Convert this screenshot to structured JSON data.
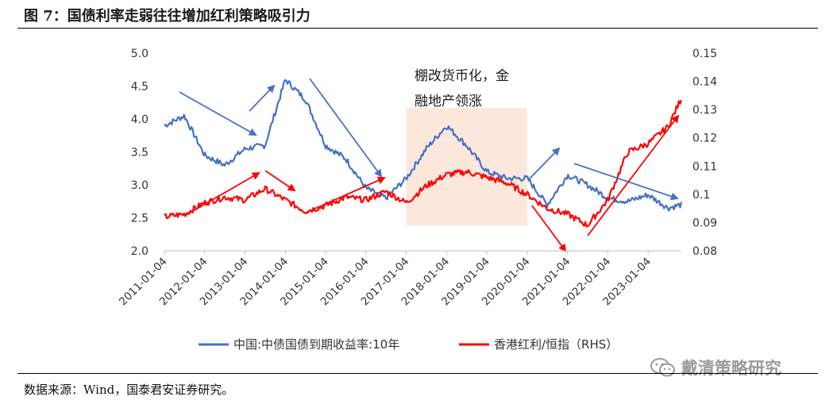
{
  "figure": {
    "title": "图 7：国债利率走弱往往增加红利策略吸引力",
    "source": "数据来源：Wind，国泰君安证券研究。",
    "watermark": "戴清策略研究"
  },
  "chart_data": {
    "type": "line",
    "x": [
      "2011-01-04",
      "2011-07-04",
      "2012-01-04",
      "2012-07-04",
      "2013-01-04",
      "2013-07-04",
      "2014-01-04",
      "2014-07-04",
      "2015-01-04",
      "2015-07-04",
      "2016-01-04",
      "2016-07-04",
      "2017-01-04",
      "2017-07-04",
      "2018-01-04",
      "2018-07-04",
      "2019-01-04",
      "2019-07-04",
      "2020-01-04",
      "2020-07-04",
      "2021-01-04",
      "2021-07-04",
      "2022-01-04",
      "2022-07-04",
      "2023-01-04",
      "2023-07-04",
      "2023-11-01"
    ],
    "series": [
      {
        "name": "中国:中债国债到期收益率:10年",
        "axis": "left",
        "color": "#4472C4",
        "values": [
          3.9,
          4.05,
          3.45,
          3.3,
          3.55,
          3.6,
          4.6,
          4.3,
          3.6,
          3.4,
          2.95,
          2.8,
          3.1,
          3.55,
          3.9,
          3.6,
          3.2,
          3.1,
          3.1,
          2.7,
          3.15,
          3.0,
          2.8,
          2.75,
          2.85,
          2.65,
          2.7
        ]
      },
      {
        "name": "香港红利/恒指（RHS）",
        "axis": "right",
        "color": "#FF0000",
        "values": [
          0.092,
          0.093,
          0.097,
          0.099,
          0.098,
          0.102,
          0.098,
          0.094,
          0.096,
          0.099,
          0.098,
          0.101,
          0.097,
          0.103,
          0.107,
          0.108,
          0.106,
          0.104,
          0.1,
          0.095,
          0.093,
          0.089,
          0.098,
          0.115,
          0.118,
          0.124,
          0.134
        ]
      }
    ],
    "y_left": {
      "min": 2.0,
      "max": 5.0,
      "ticks": [
        "2.0",
        "2.5",
        "3.0",
        "3.5",
        "4.0",
        "4.5",
        "5.0"
      ]
    },
    "y_right": {
      "min": 0.08,
      "max": 0.15,
      "ticks": [
        "0.08",
        "0.09",
        "0.1",
        "0.11",
        "0.12",
        "0.13",
        "0.14",
        "0.15"
      ]
    },
    "x_ticks": [
      "2011-01-04",
      "2012-01-04",
      "2013-01-04",
      "2014-01-04",
      "2015-01-04",
      "2016-01-04",
      "2017-01-04",
      "2018-01-04",
      "2019-01-04",
      "2020-01-04",
      "2021-01-04",
      "2022-01-04",
      "2023-01-04"
    ],
    "legend_position": "bottom",
    "annotation": {
      "line1": "棚改货币化，金",
      "line2": "融地产领涨",
      "from": "2017-01-04",
      "to": "2020-01-04"
    }
  },
  "colors": {
    "blue": "#4472C4",
    "red": "#FF0000",
    "shade": "#FBE3D6",
    "arrow_blue": "#4472C4",
    "arrow_red": "#FF0000"
  }
}
